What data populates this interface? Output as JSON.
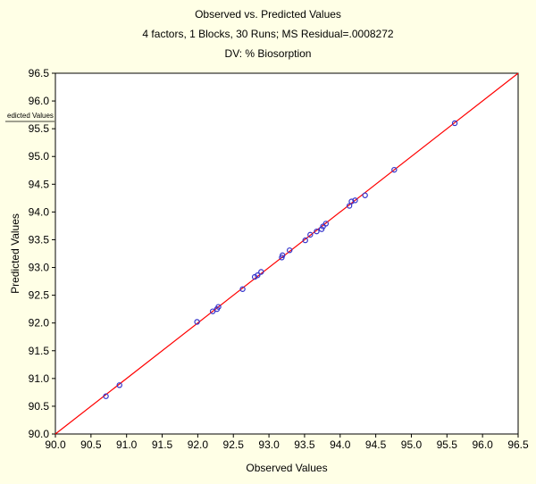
{
  "chart_data": {
    "type": "scatter",
    "title": "Observed vs. Predicted Values",
    "subtitle": "4 factors, 1 Blocks, 30 Runs; MS Residual=.0008272",
    "subtitle2": "DV: % Biosorption",
    "xlabel": "Observed Values",
    "ylabel": "Predicted Values",
    "legend_label": "edicted Values",
    "legend_position": "left",
    "xlim": [
      90.0,
      96.5
    ],
    "ylim": [
      90.0,
      96.5
    ],
    "x_ticks": [
      "90.0",
      "90.5",
      "91.0",
      "91.5",
      "92.0",
      "92.5",
      "93.0",
      "93.5",
      "94.0",
      "94.5",
      "95.0",
      "95.5",
      "96.0",
      "96.5"
    ],
    "y_ticks": [
      "90.0",
      "90.5",
      "91.0",
      "91.5",
      "92.0",
      "92.5",
      "93.0",
      "93.5",
      "94.0",
      "94.5",
      "95.0",
      "95.5",
      "96.0",
      "96.5"
    ],
    "grid": true,
    "grid_style": "dotted",
    "reference_line": {
      "from": [
        90.0,
        90.0
      ],
      "to": [
        96.5,
        96.5
      ],
      "color": "#ff0000"
    },
    "point_color": "#3333cc",
    "points": [
      {
        "x": 90.71,
        "y": 90.68
      },
      {
        "x": 90.9,
        "y": 90.88
      },
      {
        "x": 91.99,
        "y": 92.02
      },
      {
        "x": 92.21,
        "y": 92.21
      },
      {
        "x": 92.27,
        "y": 92.25
      },
      {
        "x": 92.29,
        "y": 92.29
      },
      {
        "x": 92.63,
        "y": 92.61
      },
      {
        "x": 92.8,
        "y": 92.83
      },
      {
        "x": 92.84,
        "y": 92.86
      },
      {
        "x": 92.89,
        "y": 92.92
      },
      {
        "x": 93.18,
        "y": 93.18
      },
      {
        "x": 93.19,
        "y": 93.22
      },
      {
        "x": 93.29,
        "y": 93.31
      },
      {
        "x": 93.51,
        "y": 93.49
      },
      {
        "x": 93.58,
        "y": 93.59
      },
      {
        "x": 93.67,
        "y": 93.65
      },
      {
        "x": 93.74,
        "y": 93.69
      },
      {
        "x": 93.76,
        "y": 93.74
      },
      {
        "x": 93.8,
        "y": 93.79
      },
      {
        "x": 94.13,
        "y": 94.11
      },
      {
        "x": 94.16,
        "y": 94.19
      },
      {
        "x": 94.21,
        "y": 94.21
      },
      {
        "x": 94.35,
        "y": 94.3
      },
      {
        "x": 94.76,
        "y": 94.76
      },
      {
        "x": 95.61,
        "y": 95.6
      }
    ]
  }
}
